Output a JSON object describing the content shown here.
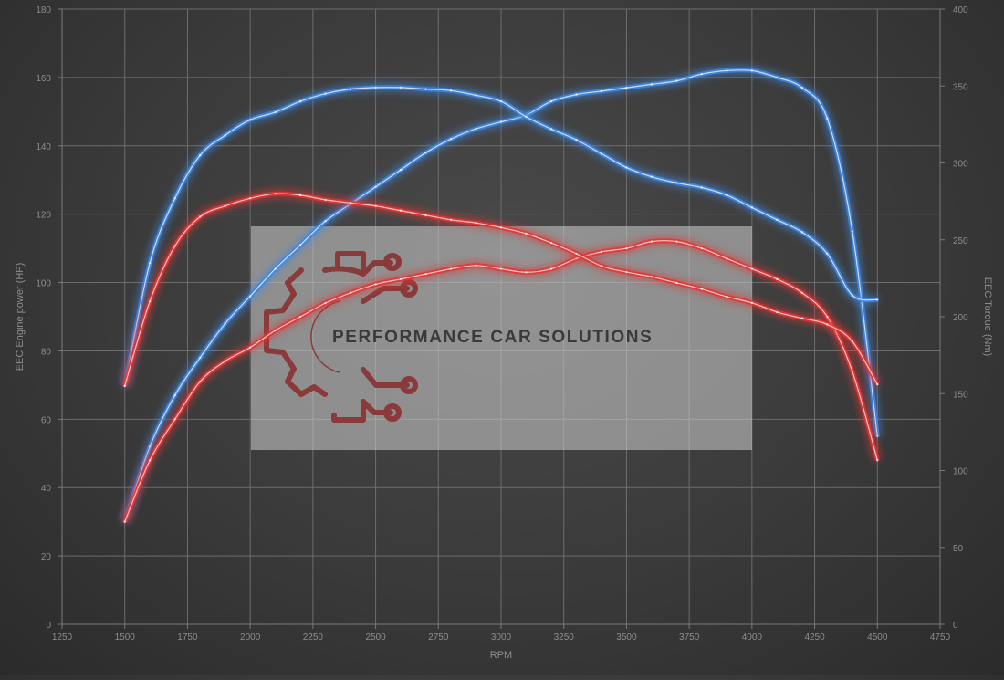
{
  "chart_data": {
    "type": "line",
    "xlabel": "RPM",
    "ylabel": "EEC Engine power (HP)",
    "y2label": "EEC Torque (Nm)",
    "xlim": [
      1250,
      4750
    ],
    "ylim": [
      0,
      180
    ],
    "y2lim": [
      0,
      400
    ],
    "x_ticks": [
      1250,
      1500,
      1750,
      2000,
      2250,
      2500,
      2750,
      3000,
      3250,
      3500,
      3750,
      4000,
      4250,
      4500,
      4750
    ],
    "y_ticks": [
      0,
      20,
      40,
      60,
      80,
      100,
      120,
      140,
      160,
      180
    ],
    "y2_ticks": [
      0,
      50,
      100,
      150,
      200,
      250,
      300,
      350,
      400
    ],
    "grid": true,
    "legend": "none",
    "series": [
      {
        "axis": "left",
        "color": "#3f86e0",
        "x": [
          1500,
          1600,
          1700,
          1800,
          1900,
          2000,
          2100,
          2200,
          2300,
          2400,
          2500,
          2600,
          2700,
          2800,
          2900,
          3000,
          3100,
          3200,
          3300,
          3400,
          3500,
          3600,
          3700,
          3800,
          3900,
          4000,
          4100,
          4200,
          4300,
          4400,
          4500
        ],
        "y": [
          30,
          52,
          67,
          78,
          88,
          96,
          104,
          111,
          118,
          123,
          128,
          133,
          138,
          142,
          145,
          147,
          149,
          153,
          155,
          156,
          157,
          158,
          159,
          161,
          162,
          162,
          160,
          157,
          148,
          115,
          55
        ]
      },
      {
        "axis": "left",
        "color": "#e03535",
        "x": [
          1500,
          1600,
          1700,
          1800,
          1900,
          2000,
          2100,
          2200,
          2300,
          2400,
          2500,
          2600,
          2700,
          2800,
          2900,
          3000,
          3100,
          3200,
          3300,
          3400,
          3500,
          3600,
          3700,
          3800,
          3900,
          4000,
          4100,
          4200,
          4300,
          4400,
          4500
        ],
        "y": [
          30,
          48,
          60,
          71,
          77,
          81,
          86,
          90,
          94,
          97,
          99.5,
          101,
          102.5,
          104,
          105,
          104,
          103,
          104,
          107,
          109,
          110,
          112,
          112,
          110,
          107,
          104,
          101,
          97,
          90,
          74,
          48
        ]
      },
      {
        "axis": "right",
        "color": "#3f86e0",
        "x": [
          1500,
          1600,
          1700,
          1800,
          1900,
          2000,
          2100,
          2200,
          2300,
          2400,
          2500,
          2600,
          2700,
          2800,
          2900,
          3000,
          3100,
          3200,
          3300,
          3400,
          3500,
          3600,
          3700,
          3800,
          3900,
          4000,
          4100,
          4200,
          4300,
          4400,
          4500
        ],
        "y": [
          155,
          235,
          277,
          305,
          318,
          328,
          333,
          340,
          345,
          348,
          349,
          349,
          348,
          347,
          344,
          340,
          330,
          322,
          315,
          306,
          297,
          291,
          287,
          284,
          279,
          271,
          263,
          255,
          241,
          214,
          211
        ]
      },
      {
        "axis": "right",
        "color": "#e03535",
        "x": [
          1500,
          1600,
          1700,
          1800,
          1900,
          2000,
          2100,
          2200,
          2300,
          2400,
          2500,
          2600,
          2700,
          2800,
          2900,
          3000,
          3100,
          3200,
          3300,
          3400,
          3500,
          3600,
          3700,
          3800,
          3900,
          4000,
          4100,
          4200,
          4300,
          4400,
          4500
        ],
        "y": [
          155,
          210,
          246,
          265,
          272,
          277,
          280,
          279,
          276,
          274,
          272,
          269,
          266,
          263,
          261,
          258,
          254,
          248,
          241,
          233,
          229,
          226,
          222,
          218,
          213,
          209,
          203,
          199,
          195,
          184,
          156
        ]
      }
    ]
  },
  "watermark": {
    "text": "PERFORMANCE CAR SOLUTIONS",
    "logo_icon": "gear-circuit-icon",
    "logo_color": "#8a3a3a"
  }
}
